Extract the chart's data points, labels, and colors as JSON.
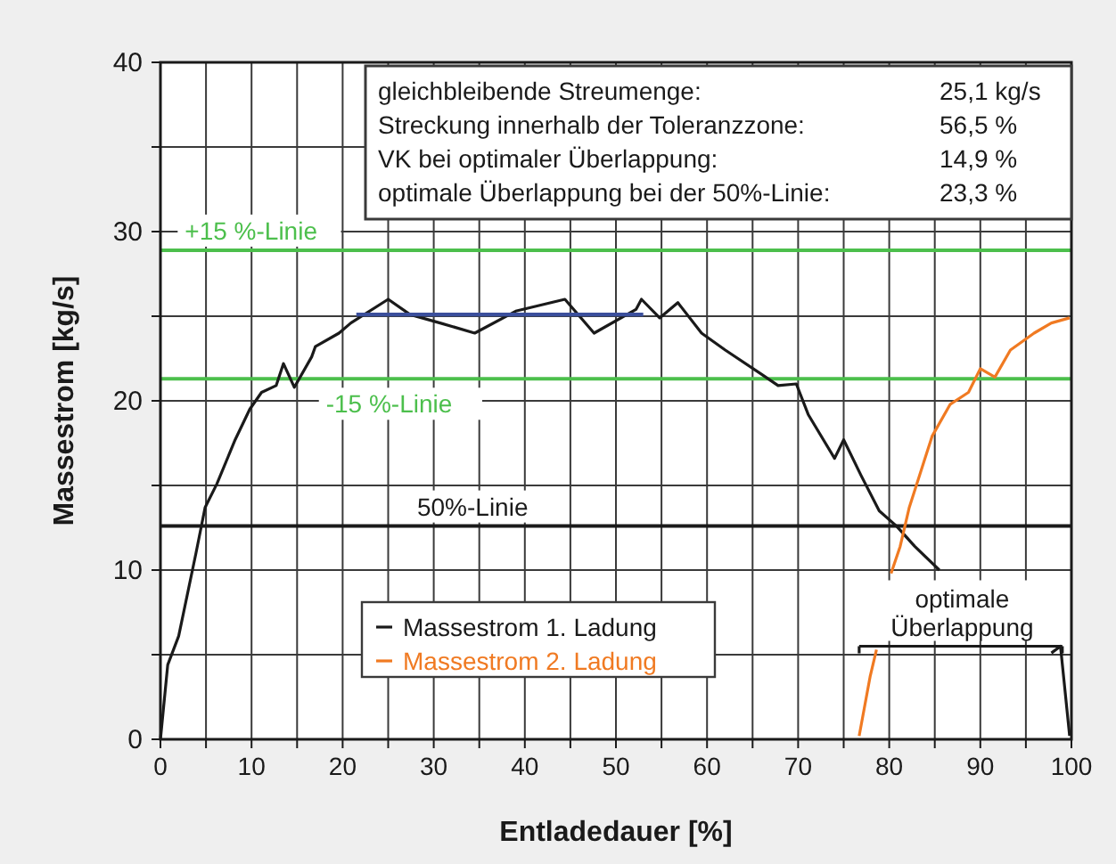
{
  "chart_data": {
    "type": "line",
    "xlabel": "Entladedauer [%]",
    "ylabel": "Massestrom [kg/s]",
    "xlim": [
      0,
      100
    ],
    "ylim": [
      0,
      40
    ],
    "xticks": [
      0,
      {
        "value": 5,
        "label": null
      },
      10,
      {
        "value": 15,
        "label": null
      },
      20,
      {
        "value": 25,
        "label": null
      },
      30,
      {
        "value": 35,
        "label": null
      },
      40,
      {
        "value": 45,
        "label": null
      },
      50,
      {
        "value": 55,
        "label": null
      },
      60,
      {
        "value": 65,
        "label": null
      },
      70,
      {
        "value": 75,
        "label": null
      },
      80,
      {
        "value": 85,
        "label": null
      },
      90,
      {
        "value": 95,
        "label": null
      },
      100
    ],
    "yticks": [
      0,
      {
        "value": 5,
        "label": null
      },
      10,
      {
        "value": 15,
        "label": null
      },
      20,
      {
        "value": 25,
        "label": null
      },
      30,
      {
        "value": 35,
        "label": null
      },
      40
    ],
    "grid": true,
    "legend": "bottom",
    "line_style": "solid",
    "marker": "none",
    "series": [
      {
        "name": "Massestrom 1. Ladung",
        "color": "#1a1a1a",
        "x": [
          0,
          0.8,
          2,
          3.9,
          4.9,
          6.2,
          8.2,
          9.8,
          11.1,
          12.7,
          13.5,
          14.7,
          16.6,
          17,
          19.6,
          20.9,
          25,
          27.4,
          30.7,
          34.5,
          39,
          44.4,
          47.6,
          52.2,
          52.8,
          54.8,
          56.8,
          59.4,
          62,
          65.9,
          67.8,
          69.8,
          71.1,
          74,
          75,
          76.9,
          78.9,
          80.8,
          82.8,
          85.5,
          90,
          97.8,
          98.8,
          99.8
        ],
        "values": [
          0,
          4.4,
          6.1,
          11,
          13.7,
          15.1,
          17.7,
          19.5,
          20.5,
          20.9,
          22.2,
          20.8,
          22.6,
          23.2,
          24,
          24.6,
          26,
          25.1,
          24.6,
          24,
          25.3,
          26,
          24,
          25.4,
          26,
          24.9,
          25.8,
          24,
          23,
          21.6,
          20.9,
          21,
          19.2,
          16.6,
          17.7,
          15.6,
          13.5,
          12.6,
          11.4,
          10,
          null,
          5.1,
          5.5,
          0.2
        ]
      },
      {
        "name": "Massestrom 2. Ladung",
        "color": "#f07a22",
        "x": [
          76.7,
          77.9,
          78.6,
          79.4,
          80.2,
          81.2,
          82.2,
          84.7,
          86.7,
          88.7,
          90,
          91.6,
          93.3,
          95.9,
          97.8,
          99.8
        ],
        "values": [
          0.2,
          3.7,
          5.3,
          null,
          9.8,
          11.4,
          13.7,
          17.9,
          19.8,
          20.5,
          21.9,
          21.4,
          23,
          24,
          24.6,
          24.9
        ]
      },
      {
        "color": "#3b4f9c",
        "x": [
          21.5,
          53
        ],
        "values": [
          25.1,
          25.1
        ]
      }
    ],
    "ref_lines": [
      {
        "axis": "y",
        "value": 28.9,
        "label": "+15 %-Linie",
        "color": "#4cbf4c"
      },
      {
        "axis": "y",
        "value": 21.3,
        "label": "-15 %-Linie",
        "color": "#4cbf4c"
      },
      {
        "axis": "y",
        "value": 12.6,
        "label": "50%-Linie",
        "color": "#1a1a1a"
      }
    ],
    "annotations": [
      "gleichbleibende Streumenge:",
      "25,1 kg/s",
      "Streckung innerhalb der Toleranzzone:",
      "56,5 %",
      "VK bei optimaler Überlappung:",
      "14,9 %",
      "optimale Überlappung bei der 50%-Linie:",
      "23,3 %",
      "optimale Überlappung"
    ]
  }
}
